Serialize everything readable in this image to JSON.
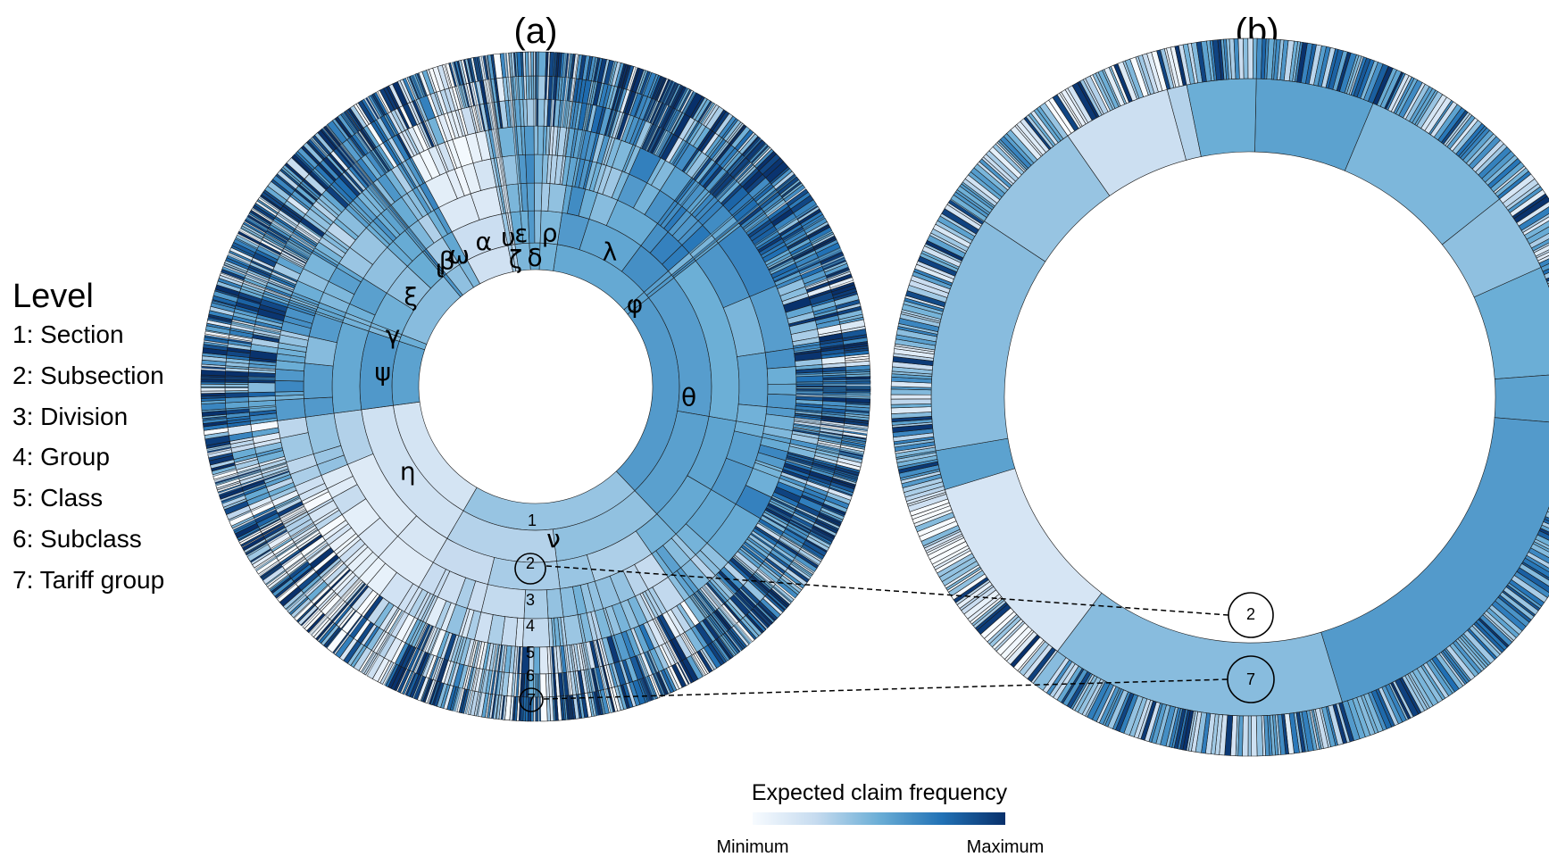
{
  "chart_data": {
    "type": "sunburst",
    "panels": [
      {
        "title": "(a)",
        "rings": [
          "1",
          "2",
          "3",
          "4",
          "5",
          "6",
          "7"
        ],
        "sections": [
          {
            "label": "λ",
            "share": 0.112,
            "value": 0.52
          },
          {
            "label": "φ",
            "share": 0.008,
            "value": 0.55
          },
          {
            "label": "θ",
            "share": 0.235,
            "value": 0.58
          },
          {
            "label": "ν",
            "share": 0.205,
            "value": 0.38
          },
          {
            "label": "η",
            "share": 0.145,
            "value": 0.18
          },
          {
            "label": "ψ",
            "share": 0.072,
            "value": 0.55
          },
          {
            "label": "γ",
            "share": 0.008,
            "value": 0.5
          },
          {
            "label": "ξ",
            "share": 0.08,
            "value": 0.42
          },
          {
            "label": "ι",
            "share": 0.004,
            "value": 0.6
          },
          {
            "label": "β",
            "share": 0.018,
            "value": 0.4
          },
          {
            "label": "ω",
            "share": 0.01,
            "value": 0.45
          },
          {
            "label": "α",
            "share": 0.048,
            "value": 0.2
          },
          {
            "label": "υ",
            "share": 0.004,
            "value": 0.35
          },
          {
            "label": "ζ",
            "share": 0.004,
            "value": 0.3
          },
          {
            "label": "ε",
            "share": 0.016,
            "value": 0.45
          },
          {
            "label": "δ",
            "share": 0.012,
            "value": 0.5
          },
          {
            "label": "ρ",
            "share": 0.019,
            "value": 0.48
          }
        ]
      },
      {
        "title": "(b)",
        "rings": [
          "2",
          "7"
        ]
      }
    ],
    "legend": {
      "title": "Level",
      "items": [
        "1: Section",
        "2: Subsection",
        "3: Division",
        "4: Group",
        "5: Class",
        "6: Subclass",
        "7: Tariff group"
      ]
    },
    "colorbar": {
      "title": "Expected claim frequency",
      "min_label": "Minimum",
      "max_label": "Maximum",
      "colors": [
        "#f7fbff",
        "#c6dbef",
        "#6baed6",
        "#2171b5",
        "#08306b"
      ]
    }
  }
}
